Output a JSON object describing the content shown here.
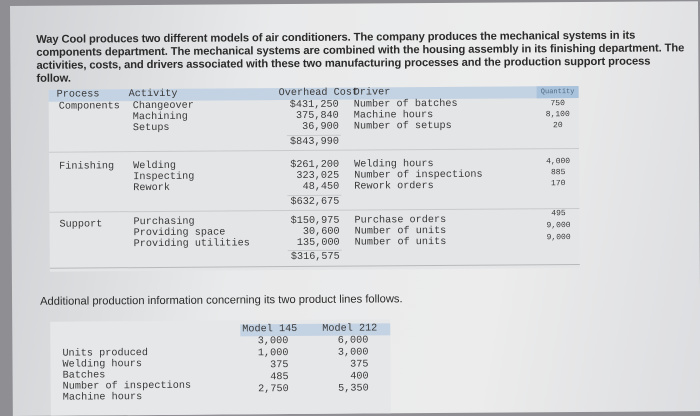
{
  "intro": "Way Cool produces two different models of air conditioners. The company produces the mechanical systems in its components department. The mechanical systems are combined with the housing assembly in its finishing department. The activities, costs, and drivers associated with these two manufacturing processes and the production support process follow.",
  "table1": {
    "headers": {
      "process": "Process",
      "activity": "Activity",
      "cost": "Overhead Cost",
      "driver": "Driver",
      "quantity": "Quantity"
    },
    "groups": [
      {
        "process": "Components",
        "rows": [
          {
            "activity": "Changeover",
            "cost": "$431,250",
            "driver": "Number of batches",
            "quantity": "750"
          },
          {
            "activity": "Machining",
            "cost": "375,840",
            "driver": "Machine hours",
            "quantity": "8,100"
          },
          {
            "activity": "Setups",
            "cost": "36,900",
            "driver": "Number of setups",
            "quantity": "20"
          }
        ],
        "total": "$843,990"
      },
      {
        "process": "Finishing",
        "rows": [
          {
            "activity": "Welding",
            "cost": "$261,200",
            "driver": "Welding hours",
            "quantity": "4,000"
          },
          {
            "activity": "Inspecting",
            "cost": "323,025",
            "driver": "Number of inspections",
            "quantity": "885"
          },
          {
            "activity": "Rework",
            "cost": "48,450",
            "driver": "Rework orders",
            "quantity": "170"
          }
        ],
        "total": "$632,675"
      },
      {
        "process": "Support",
        "rows": [
          {
            "activity": "Purchasing",
            "cost": "$150,975",
            "driver": "Purchase orders",
            "quantity": "495"
          },
          {
            "activity": "Providing space",
            "cost": "30,600",
            "driver": "Number of units",
            "quantity": "9,000"
          },
          {
            "activity": "Providing utilities",
            "cost": "135,000",
            "driver": "Number of units",
            "quantity": "9,000"
          }
        ],
        "total": "$316,575"
      }
    ]
  },
  "section2_title": "Additional production information concerning its two product lines follows.",
  "table2": {
    "headers": {
      "m145": "Model 145",
      "m212": "Model 212"
    },
    "rows": [
      {
        "label": "Units produced",
        "m145": "3,000",
        "m212": "6,000"
      },
      {
        "label": "Welding hours",
        "m145": "1,000",
        "m212": "3,000"
      },
      {
        "label": "Batches",
        "m145": "375",
        "m212": "375"
      },
      {
        "label": "Number of inspections",
        "m145": "485",
        "m212": "400"
      },
      {
        "label": "Machine hours",
        "m145": "2,750",
        "m212": "5,350"
      }
    ]
  }
}
